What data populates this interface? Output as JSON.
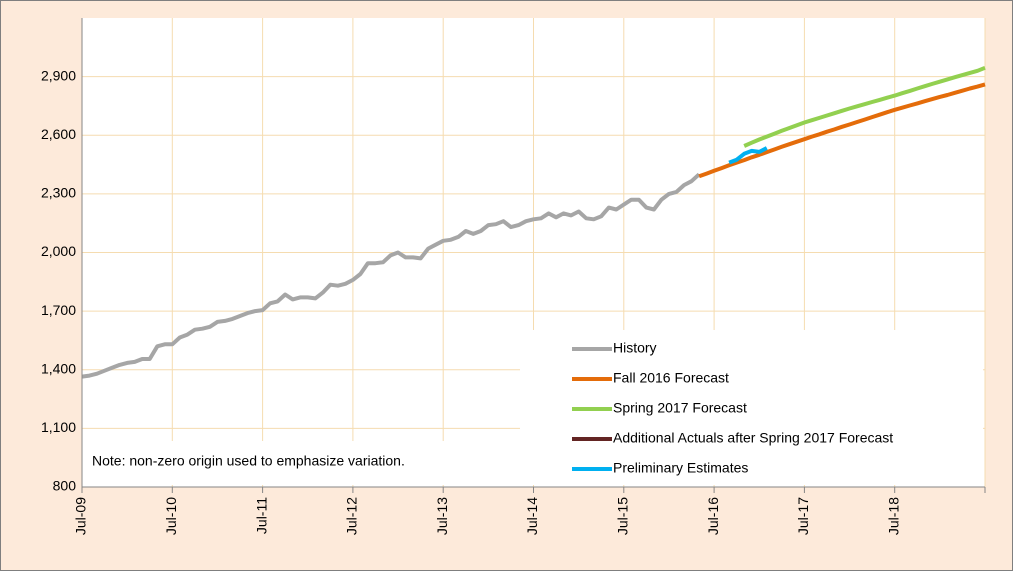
{
  "chart_data": {
    "type": "line",
    "note": "Note: non-zero origin used to emphasize variation.",
    "xlim": [
      "2009-07",
      "2019-07"
    ],
    "xticks": [
      {
        "value": "2009-07",
        "label": "Jul-09"
      },
      {
        "value": "2010-07",
        "label": "Jul-10"
      },
      {
        "value": "2011-07",
        "label": "Jul-11"
      },
      {
        "value": "2012-07",
        "label": "Jul-12"
      },
      {
        "value": "2013-07",
        "label": "Jul-13"
      },
      {
        "value": "2014-07",
        "label": "Jul-14"
      },
      {
        "value": "2015-07",
        "label": "Jul-15"
      },
      {
        "value": "2016-07",
        "label": "Jul-16"
      },
      {
        "value": "2017-07",
        "label": "Jul-17"
      },
      {
        "value": "2018-07",
        "label": "Jul-18"
      },
      {
        "value": "2019-07",
        "label": ""
      }
    ],
    "ylim": [
      800,
      3200
    ],
    "yticks": [
      800,
      {
        "value": 1100,
        "label": "1,100"
      },
      {
        "value": 1400,
        "label": "1,400"
      },
      {
        "value": 1700,
        "label": "1,700"
      },
      {
        "value": 2000,
        "label": "2,000"
      },
      {
        "value": 2300,
        "label": "2,300"
      },
      {
        "value": 2600,
        "label": "2,600"
      },
      {
        "value": 2900,
        "label": "2,900"
      }
    ],
    "grid": true,
    "series": [
      {
        "name": "History",
        "color": "#a6a6a6",
        "x": [
          "2009-07",
          "2009-08",
          "2009-09",
          "2009-10",
          "2009-11",
          "2009-12",
          "2010-01",
          "2010-02",
          "2010-03",
          "2010-04",
          "2010-05",
          "2010-06",
          "2010-07",
          "2010-08",
          "2010-09",
          "2010-10",
          "2010-11",
          "2010-12",
          "2011-01",
          "2011-02",
          "2011-03",
          "2011-04",
          "2011-05",
          "2011-06",
          "2011-07",
          "2011-08",
          "2011-09",
          "2011-10",
          "2011-11",
          "2011-12",
          "2012-01",
          "2012-02",
          "2012-03",
          "2012-04",
          "2012-05",
          "2012-06",
          "2012-07",
          "2012-08",
          "2012-09",
          "2012-10",
          "2012-11",
          "2012-12",
          "2013-01",
          "2013-02",
          "2013-03",
          "2013-04",
          "2013-05",
          "2013-06",
          "2013-07",
          "2013-08",
          "2013-09",
          "2013-10",
          "2013-11",
          "2013-12",
          "2014-01",
          "2014-02",
          "2014-03",
          "2014-04",
          "2014-05",
          "2014-06",
          "2014-07",
          "2014-08",
          "2014-09",
          "2014-10",
          "2014-11",
          "2014-12",
          "2015-01",
          "2015-02",
          "2015-03",
          "2015-04",
          "2015-05",
          "2015-06",
          "2015-07",
          "2015-08",
          "2015-09",
          "2015-10",
          "2015-11",
          "2015-12",
          "2016-01",
          "2016-02",
          "2016-03",
          "2016-04",
          "2016-05"
        ],
        "values": [
          1365,
          1370,
          1380,
          1395,
          1410,
          1425,
          1435,
          1440,
          1455,
          1455,
          1520,
          1530,
          1530,
          1565,
          1580,
          1605,
          1610,
          1620,
          1645,
          1650,
          1660,
          1675,
          1690,
          1700,
          1705,
          1740,
          1750,
          1785,
          1760,
          1770,
          1770,
          1765,
          1795,
          1835,
          1830,
          1840,
          1860,
          1890,
          1945,
          1945,
          1950,
          1985,
          2000,
          1975,
          1975,
          1970,
          2020,
          2040,
          2060,
          2065,
          2080,
          2110,
          2095,
          2110,
          2140,
          2145,
          2160,
          2130,
          2140,
          2160,
          2170,
          2175,
          2200,
          2180,
          2200,
          2190,
          2210,
          2175,
          2170,
          2185,
          2230,
          2220,
          2245,
          2270,
          2270,
          2230,
          2220,
          2270,
          2300,
          2310,
          2345,
          2365,
          2400
        ]
      },
      {
        "name": "Fall 2016 Forecast",
        "color": "#e46c0a",
        "x": [
          "2016-05",
          "2016-06",
          "2016-07",
          "2016-08",
          "2016-09",
          "2016-10",
          "2016-11",
          "2016-12",
          "2017-01",
          "2017-02",
          "2017-03",
          "2017-04",
          "2017-05",
          "2017-06",
          "2017-07",
          "2017-08",
          "2017-09",
          "2017-10",
          "2017-11",
          "2017-12",
          "2018-01",
          "2018-02",
          "2018-03",
          "2018-04",
          "2018-05",
          "2018-06",
          "2018-07",
          "2018-08",
          "2018-09",
          "2018-10",
          "2018-11",
          "2018-12",
          "2019-01",
          "2019-02",
          "2019-03",
          "2019-04",
          "2019-05",
          "2019-06",
          "2019-07"
        ],
        "values": [
          2390,
          2404,
          2418,
          2432,
          2446,
          2460,
          2473,
          2487,
          2500,
          2514,
          2527,
          2541,
          2554,
          2567,
          2580,
          2593,
          2605,
          2618,
          2630,
          2643,
          2655,
          2668,
          2680,
          2693,
          2705,
          2718,
          2730,
          2741,
          2752,
          2763,
          2774,
          2785,
          2796,
          2806,
          2817,
          2828,
          2839,
          2849,
          2860
        ]
      },
      {
        "name": "Spring 2017 Forecast",
        "color": "#92d050",
        "x": [
          "2016-11",
          "2016-12",
          "2017-01",
          "2017-02",
          "2017-03",
          "2017-04",
          "2017-05",
          "2017-06",
          "2017-07",
          "2017-08",
          "2017-09",
          "2017-10",
          "2017-11",
          "2017-12",
          "2018-01",
          "2018-02",
          "2018-03",
          "2018-04",
          "2018-05",
          "2018-06",
          "2018-07",
          "2018-08",
          "2018-09",
          "2018-10",
          "2018-11",
          "2018-12",
          "2019-01",
          "2019-02",
          "2019-03",
          "2019-04",
          "2019-05",
          "2019-06",
          "2019-07"
        ],
        "values": [
          2545,
          2562,
          2578,
          2593,
          2608,
          2623,
          2637,
          2651,
          2665,
          2677,
          2689,
          2701,
          2713,
          2725,
          2737,
          2748,
          2759,
          2770,
          2781,
          2792,
          2803,
          2815,
          2827,
          2839,
          2851,
          2863,
          2874,
          2886,
          2897,
          2908,
          2919,
          2930,
          2945
        ]
      },
      {
        "name": "Additional Actuals after Spring 2017 Forecast",
        "color": "#632523",
        "x": [],
        "values": []
      },
      {
        "name": "Preliminary Estimates",
        "color": "#00b0f0",
        "x": [
          "2016-09",
          "2016-10",
          "2016-11",
          "2016-12",
          "2017-01",
          "2017-02"
        ],
        "values": [
          2460,
          2475,
          2505,
          2520,
          2515,
          2535
        ]
      }
    ]
  }
}
